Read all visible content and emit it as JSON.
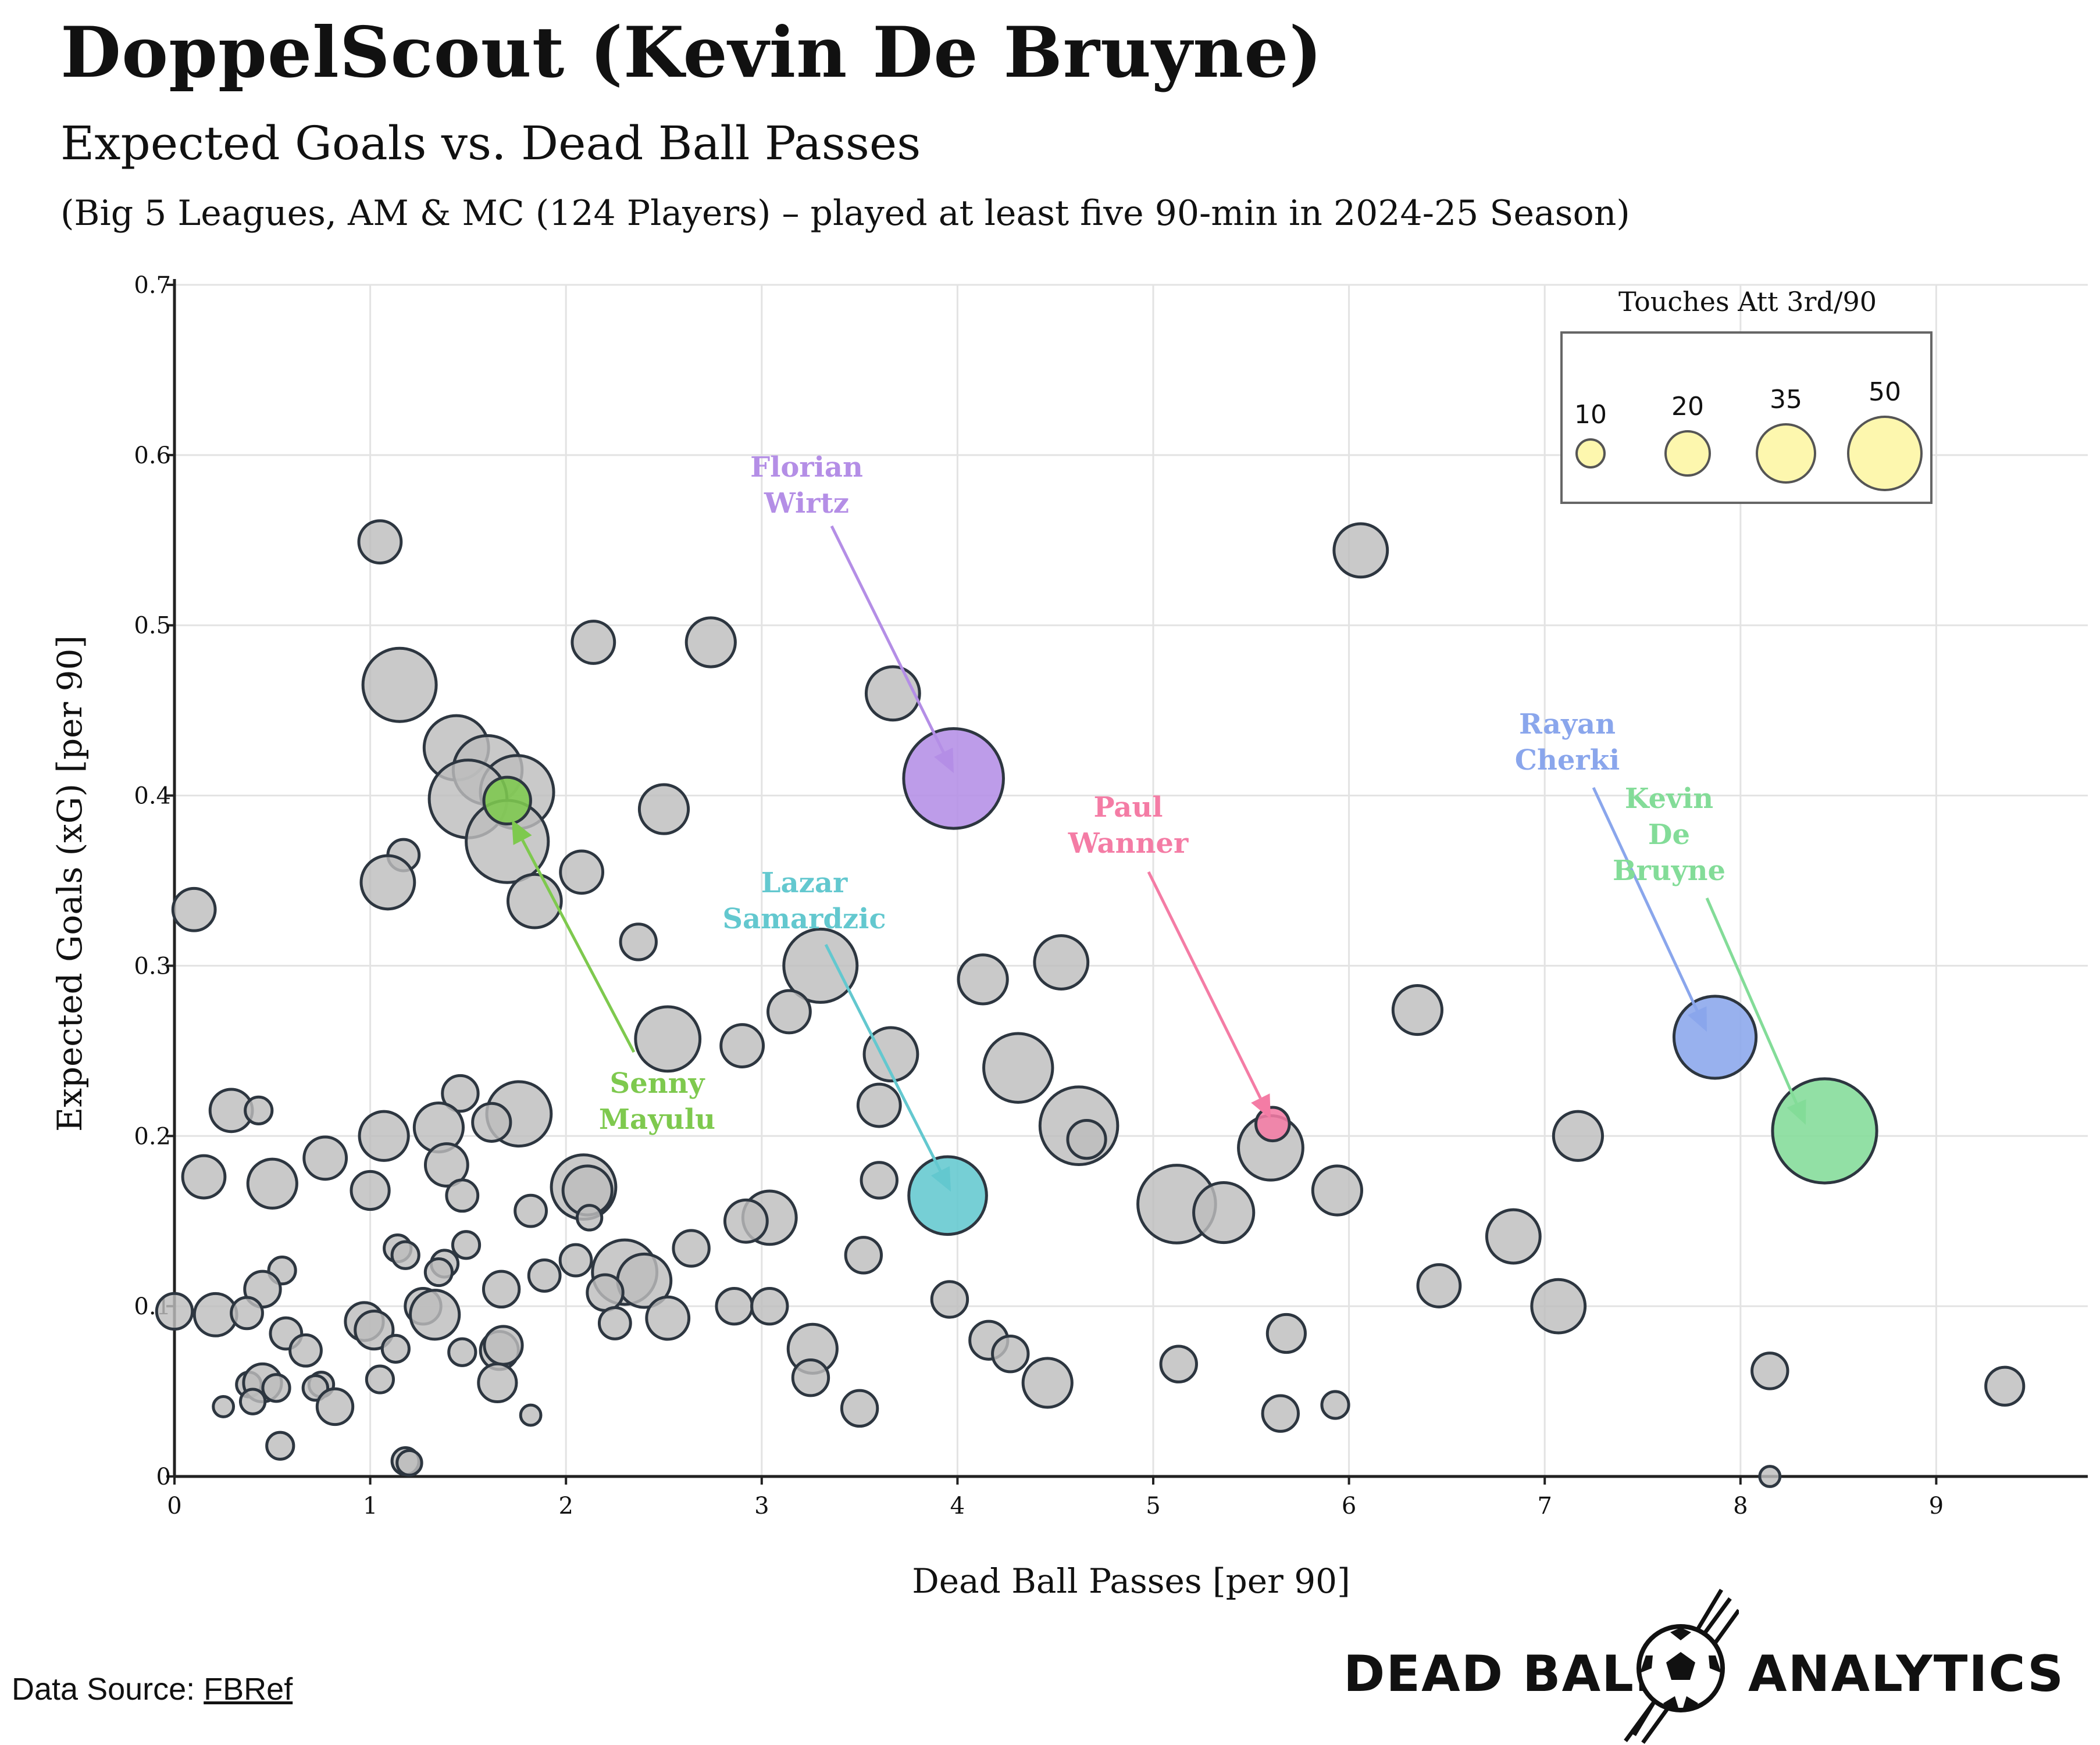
{
  "header": {
    "title": "DoppelScout (Kevin De Bruyne)",
    "subtitle": "Expected Goals vs. Dead Ball Passes",
    "caption": "(Big 5 Leagues, AM & MC (124 Players) – played at least five 90-min in 2024-25 Season)"
  },
  "footer": {
    "source_prefix": "Data Source: ",
    "source_link": "FBRef",
    "brand_left": "DEAD BALL",
    "brand_right": "ANALYTICS"
  },
  "colors": {
    "bubble_default": "#bdbdbd",
    "florian_wirtz": "#b48ee6",
    "lazar_samardzic": "#63c8cf",
    "paul_wanner": "#f47ca5",
    "rayan_cherki": "#8aa6ec",
    "kevin_de_bruyne": "#83dc98",
    "senny_mayulu": "#7ec94e",
    "legend_bubble": "#fdf7ae"
  },
  "chart_data": {
    "type": "scatter",
    "xlabel": "Dead Ball Passes [per 90]",
    "ylabel": "Expected Goals (xG) [per 90]",
    "xlim": [
      0,
      9.8
    ],
    "ylim": [
      0,
      0.7
    ],
    "xticks": [
      0,
      1,
      2,
      3,
      4,
      5,
      6,
      7,
      8,
      9
    ],
    "yticks": [
      0,
      0.1,
      0.2,
      0.3,
      0.4,
      0.5,
      0.6,
      0.7
    ],
    "ytick_labels": [
      "0",
      "0.1",
      "0.2",
      "0.3",
      "0.4",
      "0.5",
      "0.6",
      "0.7"
    ],
    "grid": true,
    "size_variable": "Touches Att 3rd/90",
    "legend": {
      "title": "Touches Att 3rd/90",
      "placement": "top-right",
      "sizes": [
        10,
        20,
        35,
        50
      ],
      "labels": [
        "10",
        "20",
        "35",
        "50"
      ]
    },
    "highlighted": [
      {
        "name": "Florian Wirtz",
        "label_lines": [
          "Florian",
          "Wirtz"
        ],
        "x": 3.98,
        "y": 0.41,
        "size": 42,
        "color": "#b48ee6"
      },
      {
        "name": "Lazar Samardzic",
        "label_lines": [
          "Lazar",
          "Samardzic"
        ],
        "x": 3.95,
        "y": 0.165,
        "size": 32,
        "color": "#63c8cf"
      },
      {
        "name": "Paul Wanner",
        "label_lines": [
          "Paul",
          "Wanner"
        ],
        "x": 5.61,
        "y": 0.207,
        "size": 12,
        "color": "#f47ca5"
      },
      {
        "name": "Rayan Cherki",
        "label_lines": [
          "Rayan",
          "Cherki"
        ],
        "x": 7.87,
        "y": 0.258,
        "size": 34,
        "color": "#8aa6ec"
      },
      {
        "name": "Kevin De Bruyne",
        "label_lines": [
          "Kevin",
          "De",
          "Bruyne"
        ],
        "x": 8.43,
        "y": 0.203,
        "size": 44,
        "color": "#83dc98"
      },
      {
        "name": "Senny Mayulu",
        "label_lines": [
          "Senny",
          "Mayulu"
        ],
        "x": 1.7,
        "y": 0.397,
        "size": 18,
        "color": "#7ec94e"
      }
    ],
    "points": [
      {
        "x": 1.05,
        "y": 0.549,
        "size": 16
      },
      {
        "x": 6.06,
        "y": 0.544,
        "size": 21
      },
      {
        "x": 2.14,
        "y": 0.49,
        "size": 16
      },
      {
        "x": 2.74,
        "y": 0.49,
        "size": 19
      },
      {
        "x": 1.15,
        "y": 0.465,
        "size": 30
      },
      {
        "x": 3.67,
        "y": 0.46,
        "size": 21
      },
      {
        "x": 1.44,
        "y": 0.428,
        "size": 26
      },
      {
        "x": 1.6,
        "y": 0.415,
        "size": 28
      },
      {
        "x": 1.75,
        "y": 0.402,
        "size": 30
      },
      {
        "x": 1.5,
        "y": 0.398,
        "size": 32
      },
      {
        "x": 1.7,
        "y": 0.373,
        "size": 34
      },
      {
        "x": 2.5,
        "y": 0.392,
        "size": 19
      },
      {
        "x": 1.17,
        "y": 0.365,
        "size": 11
      },
      {
        "x": 1.09,
        "y": 0.349,
        "size": 21
      },
      {
        "x": 2.08,
        "y": 0.355,
        "size": 16
      },
      {
        "x": 0.1,
        "y": 0.333,
        "size": 16
      },
      {
        "x": 1.84,
        "y": 0.338,
        "size": 21
      },
      {
        "x": 2.37,
        "y": 0.314,
        "size": 13
      },
      {
        "x": 3.3,
        "y": 0.3,
        "size": 30
      },
      {
        "x": 4.53,
        "y": 0.302,
        "size": 21
      },
      {
        "x": 4.13,
        "y": 0.292,
        "size": 19
      },
      {
        "x": 3.14,
        "y": 0.273,
        "size": 16
      },
      {
        "x": 6.35,
        "y": 0.274,
        "size": 19
      },
      {
        "x": 2.52,
        "y": 0.257,
        "size": 26
      },
      {
        "x": 2.9,
        "y": 0.253,
        "size": 16
      },
      {
        "x": 3.66,
        "y": 0.248,
        "size": 21
      },
      {
        "x": 4.31,
        "y": 0.24,
        "size": 28
      },
      {
        "x": 1.46,
        "y": 0.225,
        "size": 13
      },
      {
        "x": 3.6,
        "y": 0.218,
        "size": 16
      },
      {
        "x": 0.29,
        "y": 0.215,
        "size": 16
      },
      {
        "x": 0.43,
        "y": 0.215,
        "size": 9
      },
      {
        "x": 1.76,
        "y": 0.213,
        "size": 26
      },
      {
        "x": 1.35,
        "y": 0.205,
        "size": 19
      },
      {
        "x": 1.62,
        "y": 0.208,
        "size": 14
      },
      {
        "x": 1.07,
        "y": 0.2,
        "size": 19
      },
      {
        "x": 4.62,
        "y": 0.206,
        "size": 32
      },
      {
        "x": 4.66,
        "y": 0.198,
        "size": 14
      },
      {
        "x": 7.17,
        "y": 0.2,
        "size": 19
      },
      {
        "x": 5.6,
        "y": 0.193,
        "size": 26
      },
      {
        "x": 0.77,
        "y": 0.187,
        "size": 16
      },
      {
        "x": 1.39,
        "y": 0.183,
        "size": 16
      },
      {
        "x": 0.15,
        "y": 0.176,
        "size": 16
      },
      {
        "x": 0.5,
        "y": 0.172,
        "size": 19
      },
      {
        "x": 3.6,
        "y": 0.174,
        "size": 13
      },
      {
        "x": 2.09,
        "y": 0.17,
        "size": 26
      },
      {
        "x": 2.11,
        "y": 0.168,
        "size": 19
      },
      {
        "x": 1.0,
        "y": 0.168,
        "size": 14
      },
      {
        "x": 1.47,
        "y": 0.165,
        "size": 11
      },
      {
        "x": 5.94,
        "y": 0.168,
        "size": 19
      },
      {
        "x": 5.12,
        "y": 0.16,
        "size": 32
      },
      {
        "x": 5.36,
        "y": 0.155,
        "size": 24
      },
      {
        "x": 1.82,
        "y": 0.156,
        "size": 11
      },
      {
        "x": 3.04,
        "y": 0.152,
        "size": 21
      },
      {
        "x": 2.92,
        "y": 0.15,
        "size": 16
      },
      {
        "x": 2.12,
        "y": 0.152,
        "size": 8
      },
      {
        "x": 6.84,
        "y": 0.141,
        "size": 21
      },
      {
        "x": 1.49,
        "y": 0.136,
        "size": 9
      },
      {
        "x": 1.14,
        "y": 0.134,
        "size": 9
      },
      {
        "x": 1.18,
        "y": 0.13,
        "size": 9
      },
      {
        "x": 2.64,
        "y": 0.134,
        "size": 13
      },
      {
        "x": 3.52,
        "y": 0.13,
        "size": 13
      },
      {
        "x": 2.05,
        "y": 0.127,
        "size": 11
      },
      {
        "x": 1.38,
        "y": 0.125,
        "size": 9
      },
      {
        "x": 1.35,
        "y": 0.12,
        "size": 9
      },
      {
        "x": 0.55,
        "y": 0.121,
        "size": 9
      },
      {
        "x": 1.89,
        "y": 0.118,
        "size": 11
      },
      {
        "x": 2.3,
        "y": 0.12,
        "size": 26
      },
      {
        "x": 2.4,
        "y": 0.115,
        "size": 21
      },
      {
        "x": 2.2,
        "y": 0.108,
        "size": 13
      },
      {
        "x": 0.45,
        "y": 0.11,
        "size": 13
      },
      {
        "x": 1.67,
        "y": 0.11,
        "size": 13
      },
      {
        "x": 6.46,
        "y": 0.112,
        "size": 16
      },
      {
        "x": 0.0,
        "y": 0.097,
        "size": 13
      },
      {
        "x": 0.21,
        "y": 0.095,
        "size": 16
      },
      {
        "x": 0.37,
        "y": 0.096,
        "size": 11
      },
      {
        "x": 1.27,
        "y": 0.1,
        "size": 13
      },
      {
        "x": 1.33,
        "y": 0.095,
        "size": 19
      },
      {
        "x": 2.86,
        "y": 0.1,
        "size": 13
      },
      {
        "x": 3.04,
        "y": 0.1,
        "size": 13
      },
      {
        "x": 3.96,
        "y": 0.104,
        "size": 13
      },
      {
        "x": 7.07,
        "y": 0.1,
        "size": 21
      },
      {
        "x": 0.97,
        "y": 0.091,
        "size": 14
      },
      {
        "x": 1.02,
        "y": 0.086,
        "size": 14
      },
      {
        "x": 2.25,
        "y": 0.09,
        "size": 11
      },
      {
        "x": 2.52,
        "y": 0.093,
        "size": 16
      },
      {
        "x": 0.57,
        "y": 0.084,
        "size": 11
      },
      {
        "x": 0.67,
        "y": 0.074,
        "size": 11
      },
      {
        "x": 1.13,
        "y": 0.075,
        "size": 9
      },
      {
        "x": 1.47,
        "y": 0.073,
        "size": 9
      },
      {
        "x": 1.66,
        "y": 0.074,
        "size": 14
      },
      {
        "x": 1.68,
        "y": 0.077,
        "size": 14
      },
      {
        "x": 4.16,
        "y": 0.08,
        "size": 14
      },
      {
        "x": 4.27,
        "y": 0.072,
        "size": 13
      },
      {
        "x": 3.26,
        "y": 0.075,
        "size": 19
      },
      {
        "x": 5.68,
        "y": 0.084,
        "size": 14
      },
      {
        "x": 5.13,
        "y": 0.066,
        "size": 13
      },
      {
        "x": 8.15,
        "y": 0.062,
        "size": 13
      },
      {
        "x": 9.35,
        "y": 0.053,
        "size": 14
      },
      {
        "x": 0.38,
        "y": 0.054,
        "size": 8
      },
      {
        "x": 0.45,
        "y": 0.055,
        "size": 14
      },
      {
        "x": 0.52,
        "y": 0.052,
        "size": 9
      },
      {
        "x": 0.75,
        "y": 0.054,
        "size": 8
      },
      {
        "x": 0.72,
        "y": 0.052,
        "size": 8
      },
      {
        "x": 1.05,
        "y": 0.057,
        "size": 9
      },
      {
        "x": 1.65,
        "y": 0.055,
        "size": 14
      },
      {
        "x": 3.25,
        "y": 0.058,
        "size": 13
      },
      {
        "x": 4.46,
        "y": 0.055,
        "size": 19
      },
      {
        "x": 0.4,
        "y": 0.044,
        "size": 8
      },
      {
        "x": 0.25,
        "y": 0.041,
        "size": 6
      },
      {
        "x": 0.82,
        "y": 0.041,
        "size": 13
      },
      {
        "x": 1.82,
        "y": 0.036,
        "size": 6
      },
      {
        "x": 3.5,
        "y": 0.04,
        "size": 13
      },
      {
        "x": 5.65,
        "y": 0.037,
        "size": 13
      },
      {
        "x": 5.93,
        "y": 0.042,
        "size": 9
      },
      {
        "x": 0.54,
        "y": 0.018,
        "size": 9
      },
      {
        "x": 1.18,
        "y": 0.009,
        "size": 9
      },
      {
        "x": 1.2,
        "y": 0.008,
        "size": 8
      },
      {
        "x": 8.15,
        "y": 0.0,
        "size": 6
      }
    ]
  }
}
